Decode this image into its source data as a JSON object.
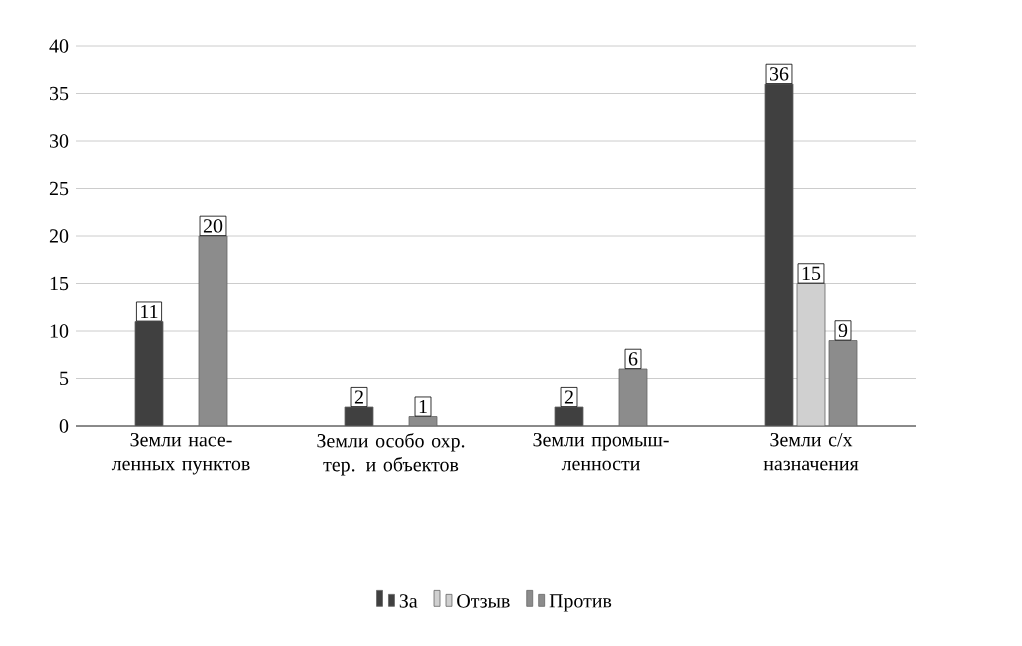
{
  "chart_data": {
    "type": "bar",
    "categories": [
      "Земли насе-ленных пунктов",
      "Земли особо охр. тер. и объектов",
      "Земли промыш-ленности",
      "Земли с/х назначения"
    ],
    "series": [
      {
        "name": "За",
        "color": "#404040",
        "values": [
          11,
          2,
          2,
          36
        ]
      },
      {
        "name": "Отзыв",
        "color": "#d0d0d0",
        "values": [
          null,
          null,
          null,
          15
        ]
      },
      {
        "name": "Против",
        "color": "#8c8c8c",
        "values": [
          20,
          1,
          6,
          9
        ]
      }
    ],
    "ylim": [
      0,
      40
    ],
    "yticks": [
      0,
      5,
      10,
      15,
      20,
      25,
      30,
      35,
      40
    ],
    "grid": "y",
    "legend": "bottom",
    "data_labels": true
  }
}
